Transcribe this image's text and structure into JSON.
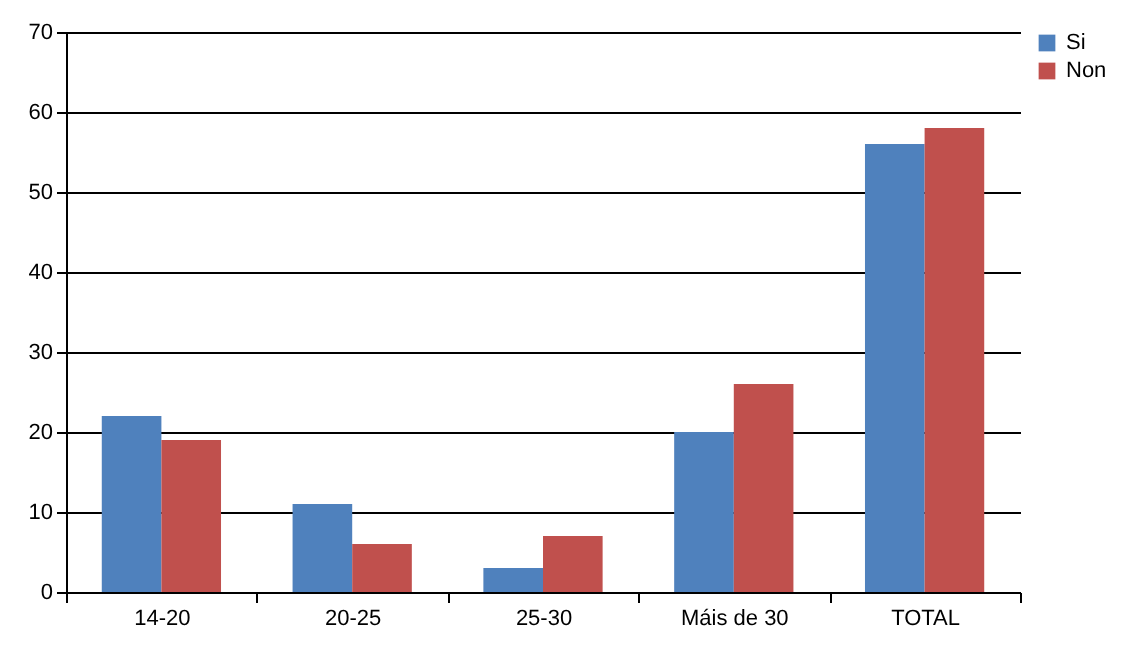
{
  "chart_data": {
    "type": "bar",
    "categories": [
      "14-20",
      "20-25",
      "25-30",
      "Máis de 30",
      "TOTAL"
    ],
    "series": [
      {
        "name": "Si",
        "color": "#4f81bd",
        "values": [
          22,
          11,
          3,
          20,
          56
        ]
      },
      {
        "name": "Non",
        "color": "#c0504d",
        "values": [
          19,
          6,
          7,
          26,
          58
        ]
      }
    ],
    "ylim": [
      0,
      70
    ],
    "yticks": [
      0,
      10,
      20,
      30,
      40,
      50,
      60,
      70
    ],
    "grid": "y",
    "legend": "right"
  }
}
